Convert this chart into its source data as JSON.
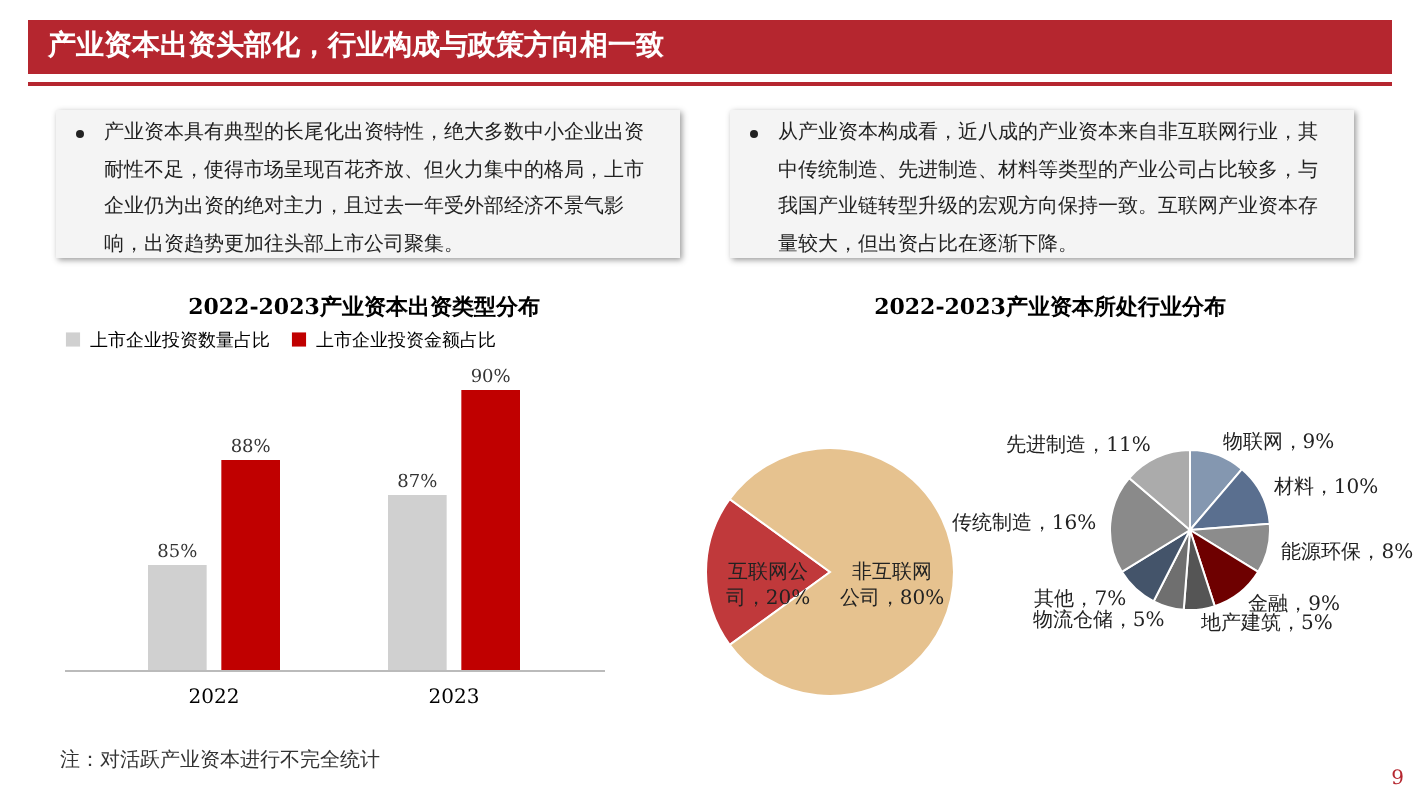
{
  "chart_data": [
    {
      "type": "other",
      "title": "产业资本出资头部化，行业构成与政策方向相一致",
      "annotations": [
        "产业资本具有典型的长尾化出资特性，绝大多数中小企业出资耐性不足，使得市场呈现百花齐放、但火力集中的格局，上市企业仍为出资的绝对主力，且过去一年受外部经济不景气影响，出资趋势更加往头部上市公司聚集。",
        "从产业资本构成看，近八成的产业资本来自非互联网行业，其中传统制造、先进制造、材料等类型的产业公司占比较多，与我国产业链转型升级的宏观方向保持一致。互联网产业资本存量较大，但出资占比在逐渐下降。",
        "9"
      ]
    },
    {
      "type": "bar",
      "title": "2022-2023产业资本出资类型分布",
      "categories": [
        "2022",
        "2023"
      ],
      "series": [
        {
          "name": "上市企业投资数量占比",
          "color": "#d0d0d0",
          "values": [
            85,
            87
          ],
          "value_labels": [
            "85%",
            "87%"
          ]
        },
        {
          "name": "上市企业投资金额占比",
          "color": "#c00000",
          "values": [
            88,
            90
          ],
          "value_labels": [
            "88%",
            "90%"
          ]
        }
      ],
      "ylim": [
        82,
        90
      ],
      "tick_labels": "x",
      "legend": "top",
      "annotations": [
        "注：对活跃产业资本进行不完全统计"
      ]
    },
    {
      "type": "pie",
      "title": "2022-2023产业资本所处行业分布",
      "categories": [
        "互联网公司",
        "非互联网公司"
      ],
      "values": [
        20,
        80
      ],
      "value_labels": [
        "20%",
        "80%"
      ],
      "colors": [
        "#c0393b",
        "#e6c28f"
      ]
    },
    {
      "type": "pie",
      "categories": [
        "物联网",
        "材料",
        "能源环保",
        "金融",
        "地产建筑",
        "物流仓储",
        "其他",
        "传统制造",
        "先进制造"
      ],
      "values": [
        9,
        10,
        8,
        9,
        5,
        5,
        7,
        16,
        11
      ],
      "value_labels": [
        "9%",
        "10%",
        "8%",
        "9%",
        "5%",
        "5%",
        "7%",
        "16%",
        "11%"
      ],
      "colors": [
        "#8497b0",
        "#5a6f8f",
        "#8c8c8c",
        "#6e0000",
        "#555555",
        "#6f6f6f",
        "#44546a",
        "#8a8a8a",
        "#ababab"
      ]
    }
  ]
}
